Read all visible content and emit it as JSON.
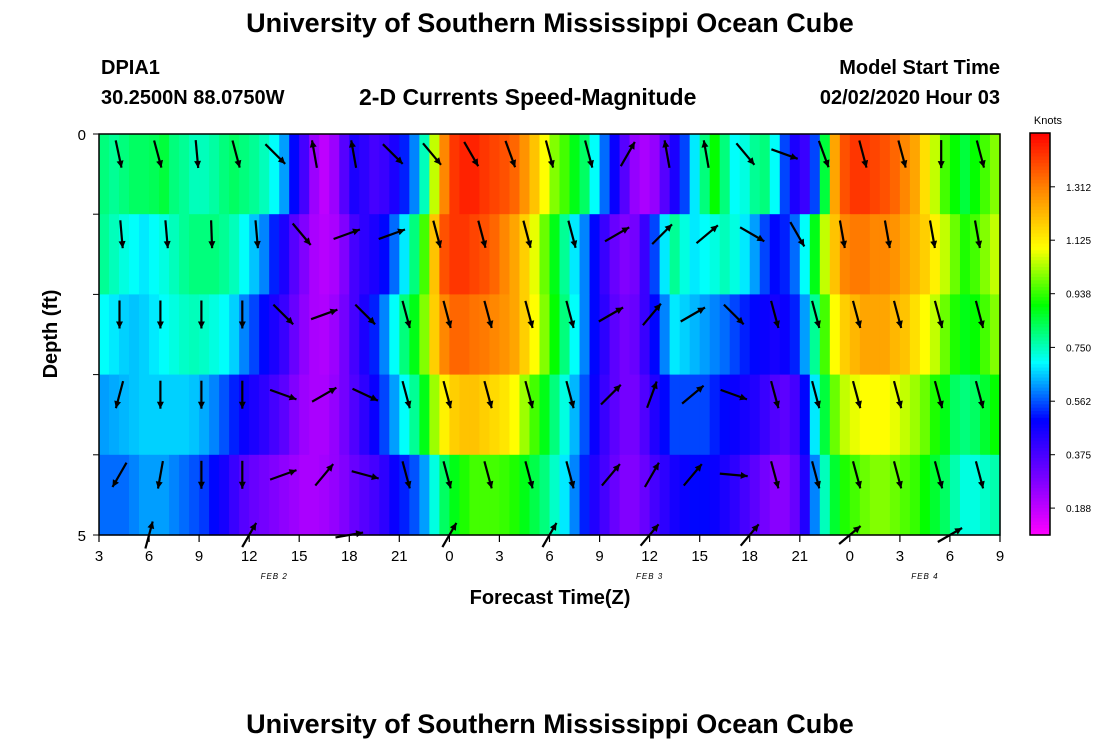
{
  "page": {
    "title_top": "University of Southern Mississippi Ocean Cube",
    "title_bottom": "University of Southern Mississippi Ocean Cube",
    "station_id": "DPIA1",
    "station_coords": "30.2500N 88.0750W",
    "plot_title": "2-D Currents Speed-Magnitude",
    "model_label": "Model Start Time",
    "model_time": "02/02/2020 Hour 03"
  },
  "colors": {
    "scale": [
      "#ff00ff",
      "#7700ff",
      "#0000ff",
      "#00ffff",
      "#00ff00",
      "#ffff00",
      "#ff8800",
      "#ff0000"
    ]
  },
  "chart_data": {
    "type": "heatmap",
    "xlabel": "Forecast Time(Z)",
    "ylabel": "Depth (ft)",
    "y_ticks": [
      "0",
      "5"
    ],
    "y_range": [
      0,
      5
    ],
    "x_ticks": [
      "3",
      "6",
      "9",
      "12",
      "15",
      "18",
      "21",
      "0",
      "3",
      "6",
      "9",
      "12",
      "15",
      "18",
      "21",
      "0",
      "3",
      "6",
      "9"
    ],
    "x_range_hours": [
      0,
      54
    ],
    "date_labels": [
      {
        "label": "FEB 2",
        "hour": 10.5
      },
      {
        "label": "FEB 3",
        "hour": 33
      },
      {
        "label": "FEB 4",
        "hour": 49.5
      }
    ],
    "colorbar": {
      "unit": "Knots",
      "min": 0.094,
      "max": 1.5,
      "ticks": [
        "1.312",
        "1.125",
        "0.938",
        "0.750",
        "0.562",
        "0.375",
        "0.188"
      ],
      "tick_values": [
        1.312,
        1.125,
        0.938,
        0.75,
        0.562,
        0.375,
        0.188
      ]
    },
    "depth_layers": [
      0.25,
      1.25,
      2.25,
      3.25,
      4.25
    ],
    "speed_rows": [
      [
        0.8,
        0.78,
        0.8,
        0.82,
        0.82,
        0.83,
        0.85,
        0.8,
        0.78,
        0.75,
        0.75,
        0.77,
        0.8,
        0.82,
        0.8,
        0.78,
        0.75,
        0.7,
        0.62,
        0.5,
        0.38,
        0.24,
        0.19,
        0.24,
        0.35,
        0.45,
        0.42,
        0.38,
        0.4,
        0.45,
        0.52,
        0.6,
        0.75,
        1.05,
        1.3,
        1.42,
        1.45,
        1.45,
        1.42,
        1.4,
        1.38,
        1.35,
        1.28,
        1.2,
        1.1,
        1.0,
        0.95,
        0.88,
        0.82,
        0.7,
        0.58,
        0.48,
        0.35,
        0.25,
        0.22,
        0.25,
        0.35,
        0.45,
        0.55,
        0.68,
        0.8,
        0.9,
        0.8,
        0.7,
        0.72,
        0.78,
        0.8,
        0.7,
        0.55,
        0.45,
        0.4,
        0.55,
        0.85,
        1.25,
        1.38,
        1.42,
        1.42,
        1.4,
        1.38,
        1.35,
        1.3,
        1.25,
        1.15,
        1.05,
        0.95,
        0.9,
        0.85,
        0.9,
        0.95,
        1.0
      ],
      [
        0.78,
        0.75,
        0.72,
        0.7,
        0.68,
        0.7,
        0.72,
        0.75,
        0.78,
        0.8,
        0.8,
        0.8,
        0.78,
        0.75,
        0.7,
        0.65,
        0.6,
        0.52,
        0.45,
        0.35,
        0.28,
        0.22,
        0.2,
        0.22,
        0.28,
        0.38,
        0.42,
        0.45,
        0.5,
        0.58,
        0.68,
        0.8,
        0.95,
        1.2,
        1.38,
        1.42,
        1.42,
        1.4,
        1.38,
        1.35,
        1.3,
        1.25,
        1.18,
        1.08,
        0.98,
        0.88,
        0.78,
        0.68,
        0.6,
        0.5,
        0.4,
        0.32,
        0.28,
        0.3,
        0.4,
        0.55,
        0.68,
        0.78,
        0.72,
        0.68,
        0.7,
        0.72,
        0.75,
        0.72,
        0.68,
        0.62,
        0.55,
        0.5,
        0.52,
        0.58,
        0.7,
        0.88,
        1.05,
        1.2,
        1.3,
        1.32,
        1.32,
        1.3,
        1.3,
        1.28,
        1.25,
        1.22,
        1.18,
        1.12,
        1.05,
        0.98,
        0.92,
        0.95,
        1.0,
        1.05
      ],
      [
        0.7,
        0.68,
        0.66,
        0.65,
        0.66,
        0.68,
        0.7,
        0.72,
        0.74,
        0.75,
        0.74,
        0.72,
        0.7,
        0.66,
        0.6,
        0.55,
        0.5,
        0.45,
        0.4,
        0.32,
        0.26,
        0.22,
        0.21,
        0.24,
        0.3,
        0.38,
        0.45,
        0.52,
        0.6,
        0.7,
        0.8,
        0.88,
        1.0,
        1.18,
        1.3,
        1.35,
        1.35,
        1.33,
        1.32,
        1.3,
        1.28,
        1.25,
        1.18,
        1.1,
        1.0,
        0.9,
        0.8,
        0.7,
        0.6,
        0.5,
        0.42,
        0.34,
        0.3,
        0.32,
        0.4,
        0.5,
        0.6,
        0.68,
        0.66,
        0.64,
        0.62,
        0.6,
        0.58,
        0.55,
        0.52,
        0.5,
        0.48,
        0.46,
        0.48,
        0.52,
        0.62,
        0.78,
        0.95,
        1.1,
        1.18,
        1.22,
        1.25,
        1.25,
        1.25,
        1.22,
        1.2,
        1.15,
        1.1,
        1.05,
        0.98,
        0.92,
        0.88,
        0.9,
        0.95,
        1.0
      ],
      [
        0.62,
        0.63,
        0.64,
        0.65,
        0.66,
        0.66,
        0.66,
        0.66,
        0.66,
        0.65,
        0.63,
        0.6,
        0.56,
        0.52,
        0.48,
        0.45,
        0.42,
        0.38,
        0.34,
        0.28,
        0.24,
        0.22,
        0.22,
        0.25,
        0.3,
        0.36,
        0.42,
        0.48,
        0.55,
        0.62,
        0.7,
        0.78,
        0.88,
        1.02,
        1.12,
        1.18,
        1.2,
        1.2,
        1.18,
        1.16,
        1.14,
        1.1,
        1.02,
        0.95,
        0.88,
        0.8,
        0.72,
        0.64,
        0.56,
        0.48,
        0.4,
        0.34,
        0.3,
        0.3,
        0.36,
        0.44,
        0.5,
        0.55,
        0.55,
        0.55,
        0.55,
        0.52,
        0.5,
        0.48,
        0.46,
        0.44,
        0.4,
        0.36,
        0.34,
        0.38,
        0.5,
        0.68,
        0.85,
        0.98,
        1.05,
        1.08,
        1.1,
        1.1,
        1.1,
        1.08,
        1.05,
        1.02,
        0.98,
        0.92,
        0.88,
        0.82,
        0.8,
        0.82,
        0.86,
        0.9
      ],
      [
        0.58,
        0.58,
        0.58,
        0.6,
        0.62,
        0.62,
        0.62,
        0.6,
        0.58,
        0.56,
        0.54,
        0.5,
        0.46,
        0.4,
        0.35,
        0.32,
        0.3,
        0.28,
        0.26,
        0.24,
        0.22,
        0.22,
        0.23,
        0.25,
        0.28,
        0.32,
        0.35,
        0.38,
        0.42,
        0.48,
        0.52,
        0.56,
        0.62,
        0.72,
        0.82,
        0.88,
        0.92,
        0.95,
        0.95,
        0.95,
        0.94,
        0.92,
        0.88,
        0.84,
        0.8,
        0.74,
        0.68,
        0.6,
        0.52,
        0.44,
        0.38,
        0.32,
        0.28,
        0.28,
        0.32,
        0.38,
        0.42,
        0.46,
        0.48,
        0.5,
        0.5,
        0.48,
        0.45,
        0.42,
        0.38,
        0.34,
        0.3,
        0.27,
        0.27,
        0.32,
        0.44,
        0.6,
        0.75,
        0.86,
        0.92,
        0.95,
        0.98,
        1.0,
        1.0,
        0.98,
        0.96,
        0.94,
        0.9,
        0.86,
        0.82,
        0.76,
        0.72,
        0.72,
        0.74,
        0.76
      ]
    ],
    "vector_columns_hours": [
      0,
      3,
      6,
      9,
      12,
      15,
      18,
      21,
      24,
      27,
      30,
      33,
      36,
      39,
      42,
      45,
      48,
      51,
      54
    ],
    "vector_rows": [
      {
        "depth": 0.25,
        "angles": [
          168,
          165,
          175,
          165,
          135,
          -10,
          -10,
          135,
          140,
          150,
          160,
          165,
          165,
          30,
          -10,
          -10,
          140,
          110,
          160,
          165,
          165,
          180,
          165
        ]
      },
      {
        "depth": 1.25,
        "angles": [
          175,
          175,
          178,
          175,
          140,
          70,
          70,
          165,
          165,
          165,
          165,
          60,
          45,
          50,
          120,
          150,
          170,
          170,
          170,
          170
        ]
      },
      {
        "depth": 2.25,
        "angles": [
          180,
          180,
          180,
          180,
          135,
          70,
          135,
          165,
          165,
          165,
          165,
          165,
          60,
          40,
          60,
          135,
          165,
          165,
          165,
          165,
          165,
          165
        ]
      },
      {
        "depth": 3.25,
        "angles": [
          -165,
          180,
          180,
          180,
          110,
          60,
          115,
          165,
          165,
          165,
          165,
          165,
          45,
          20,
          50,
          110,
          165,
          165,
          165,
          165,
          165,
          165
        ]
      },
      {
        "depth": 4.25,
        "angles": [
          -150,
          -170,
          180,
          180,
          70,
          40,
          105,
          165,
          165,
          165,
          165,
          165,
          40,
          30,
          40,
          95,
          165,
          165,
          165,
          165,
          165,
          165
        ]
      },
      {
        "depth": 5.0,
        "angles": [
          15,
          30,
          80,
          30,
          30,
          40,
          40,
          50,
          60
        ]
      }
    ]
  }
}
